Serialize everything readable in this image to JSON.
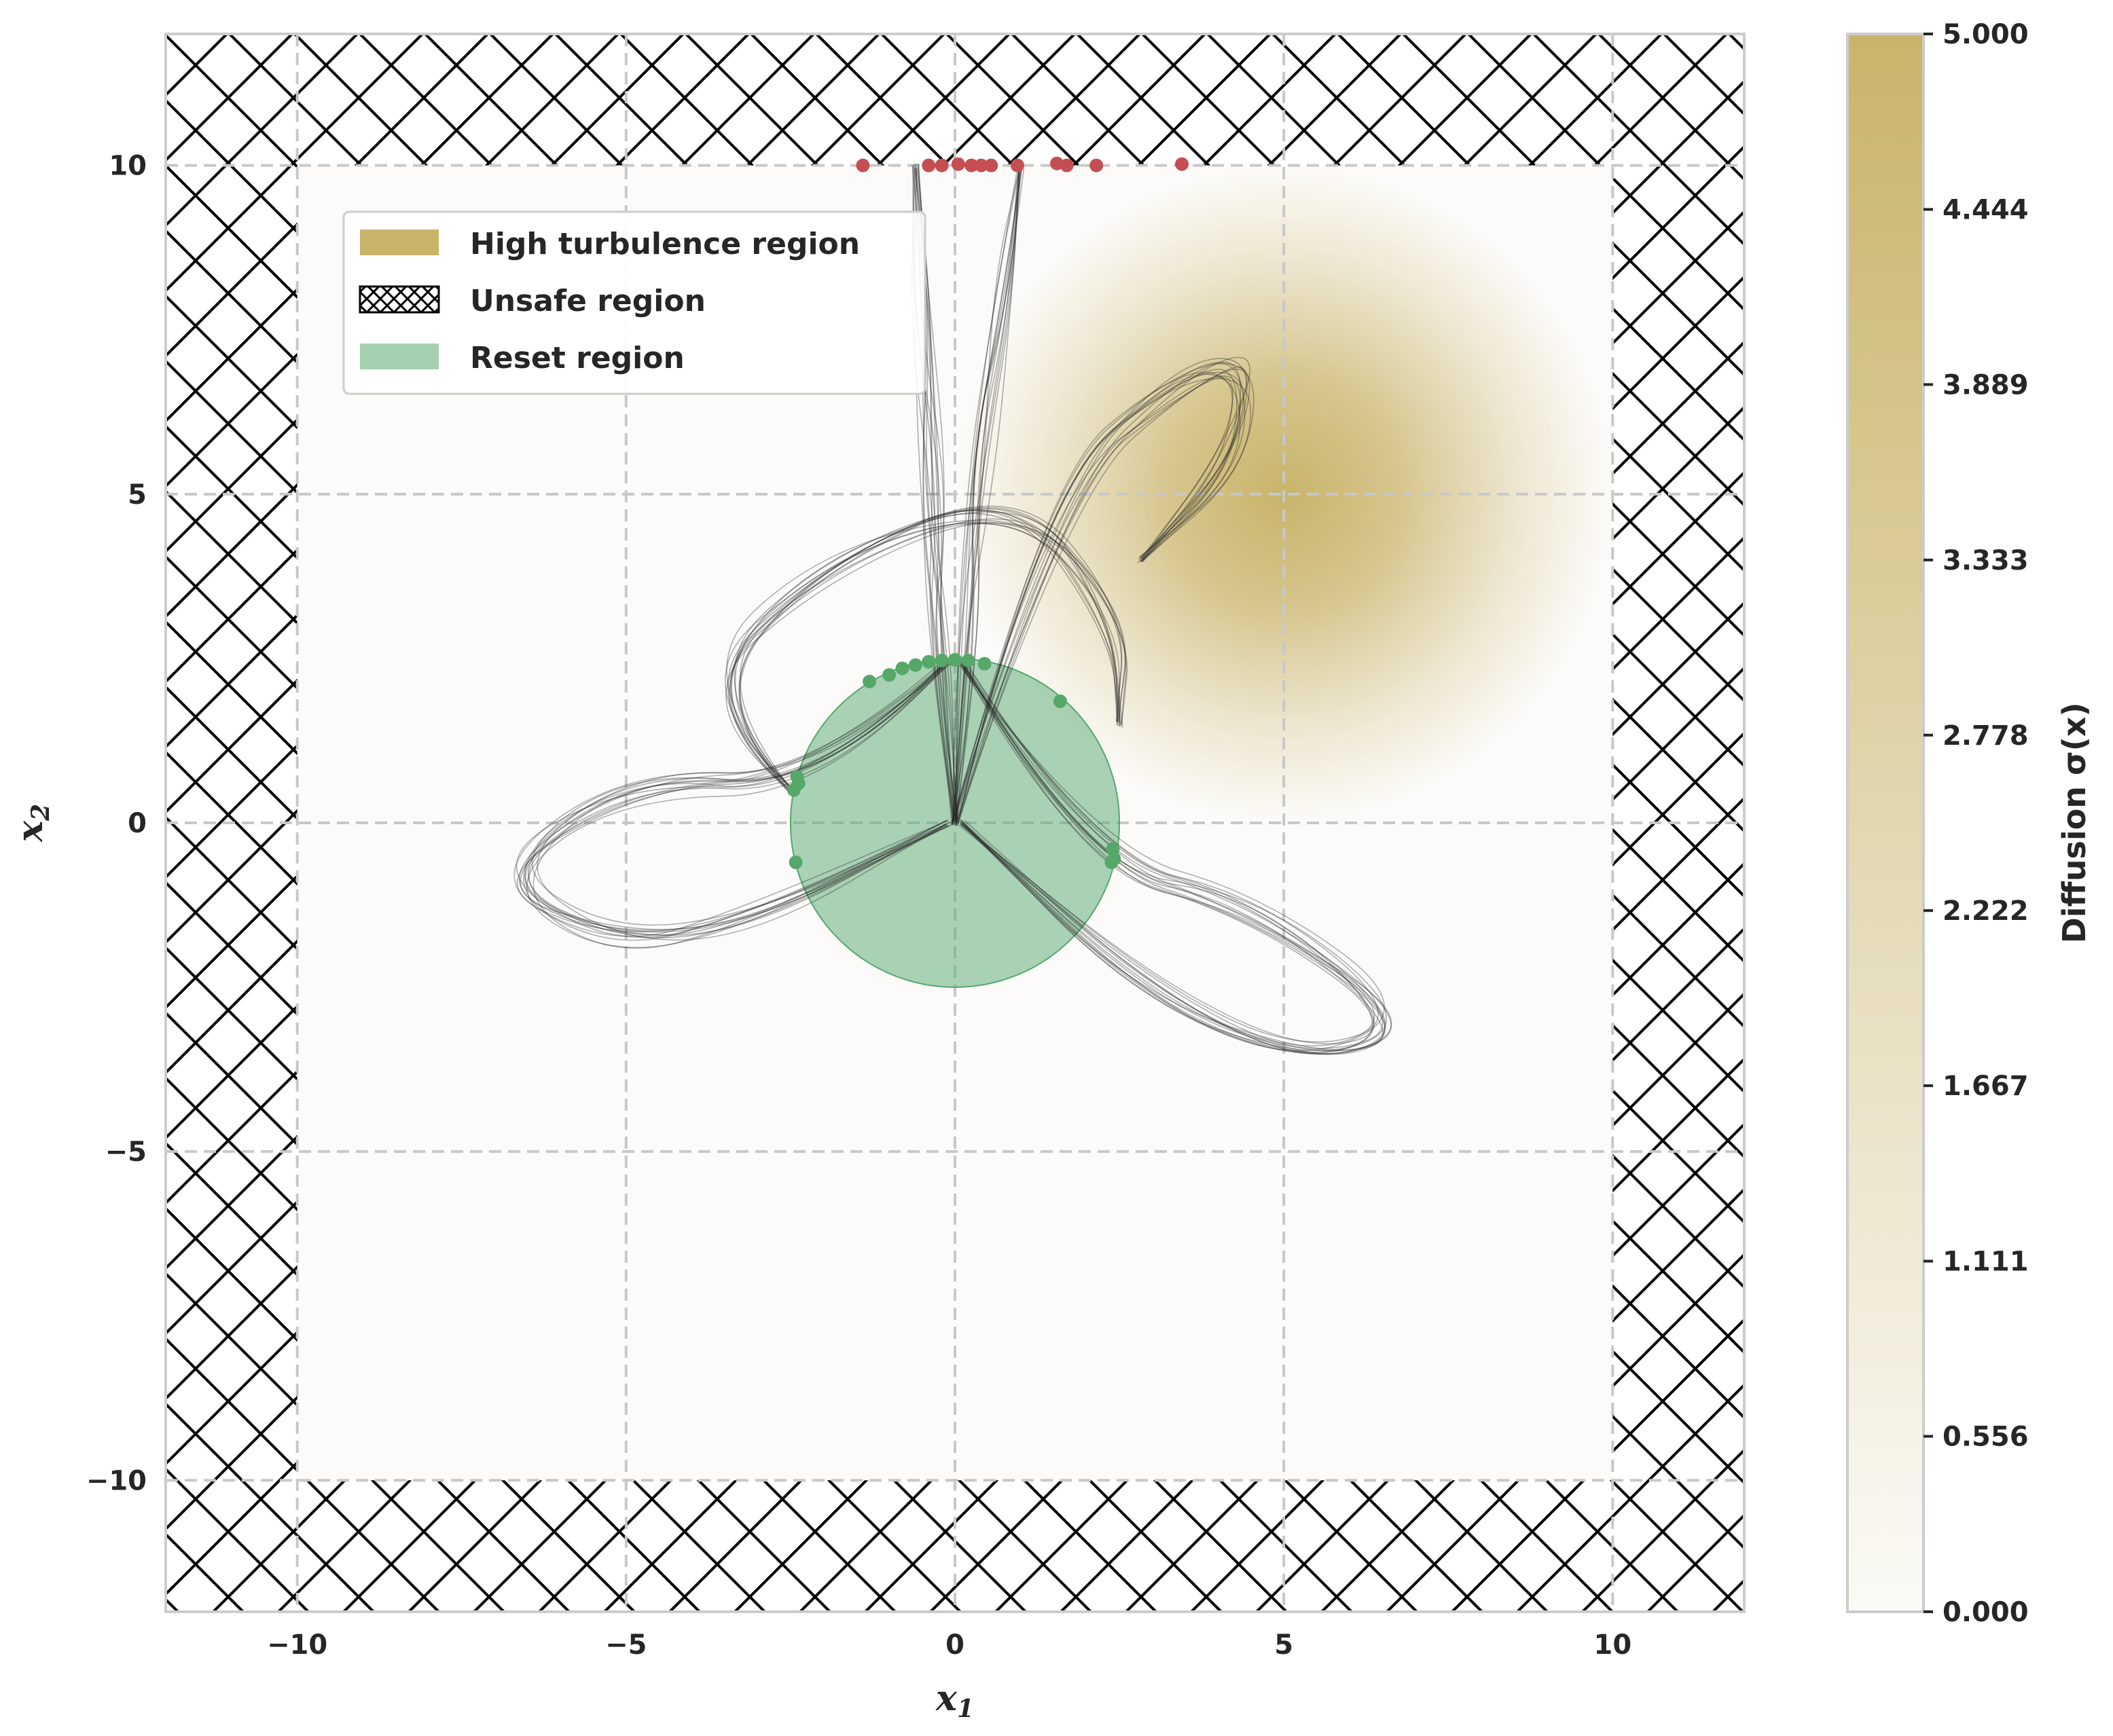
{
  "chart_data": {
    "type": "scatter",
    "xlabel": "x",
    "xlabel_sub": "1",
    "ylabel": "x",
    "ylabel_sub": "2",
    "xlim": [
      -12,
      12
    ],
    "ylim": [
      -12,
      12
    ],
    "xticks": [
      -10,
      -5,
      0,
      5,
      10
    ],
    "yticks": [
      -10,
      -5,
      0,
      5,
      10
    ],
    "xtick_labels": [
      "−10",
      "−5",
      "0",
      "5",
      "10"
    ],
    "ytick_labels": [
      "−10",
      "−5",
      "0",
      "5",
      "10"
    ],
    "grid": true,
    "legend_position": "upper-left",
    "legend": [
      {
        "label": "High turbulence region",
        "kind": "patch",
        "color": "#c9b46a"
      },
      {
        "label": "Unsafe region",
        "kind": "hatch",
        "color": "#000000"
      },
      {
        "label": "Reset region",
        "kind": "patch",
        "color": "#a5d1b0"
      }
    ],
    "safe_box": {
      "xmin": -10,
      "xmax": 10,
      "ymin": -10,
      "ymax": 10
    },
    "turbulence": {
      "center": [
        5,
        5
      ],
      "sigma_max": 5.0,
      "radius": 5
    },
    "reset_region": {
      "center": [
        0,
        0
      ],
      "radius": 2.5
    },
    "unsafe_exit_points": [
      {
        "x": -1.4,
        "y": 10.0
      },
      {
        "x": -0.4,
        "y": 10.0
      },
      {
        "x": -0.2,
        "y": 10.0
      },
      {
        "x": 0.05,
        "y": 10.02
      },
      {
        "x": 0.25,
        "y": 10.0
      },
      {
        "x": 0.4,
        "y": 10.0
      },
      {
        "x": 0.55,
        "y": 10.0
      },
      {
        "x": 0.95,
        "y": 10.0
      },
      {
        "x": 1.55,
        "y": 10.03
      },
      {
        "x": 1.7,
        "y": 10.0
      },
      {
        "x": 2.15,
        "y": 10.0
      },
      {
        "x": 3.45,
        "y": 10.02
      }
    ],
    "reset_entry_points": [
      {
        "x": -1.3,
        "y": 2.15
      },
      {
        "x": -1.0,
        "y": 2.25
      },
      {
        "x": -0.8,
        "y": 2.35
      },
      {
        "x": -0.6,
        "y": 2.4
      },
      {
        "x": -0.4,
        "y": 2.45
      },
      {
        "x": -0.2,
        "y": 2.47
      },
      {
        "x": 0.0,
        "y": 2.48
      },
      {
        "x": 0.2,
        "y": 2.47
      },
      {
        "x": 0.45,
        "y": 2.42
      },
      {
        "x": 1.6,
        "y": 1.85
      },
      {
        "x": -2.4,
        "y": 0.7
      },
      {
        "x": -2.45,
        "y": 0.5
      },
      {
        "x": -2.38,
        "y": 0.6
      },
      {
        "x": -2.42,
        "y": -0.6
      },
      {
        "x": 2.4,
        "y": -0.4
      },
      {
        "x": 2.42,
        "y": -0.55
      },
      {
        "x": 2.38,
        "y": -0.6
      }
    ],
    "trajectory_series": [
      {
        "points": [
          [
            -0.1,
            2.45
          ],
          [
            -2.0,
            0.6
          ],
          [
            -5.0,
            0.6
          ],
          [
            -7.0,
            -0.8
          ],
          [
            -5.2,
            -1.9
          ],
          [
            -3.0,
            -1.5
          ],
          [
            -0.1,
            0
          ]
        ]
      },
      {
        "points": [
          [
            0.1,
            2.45
          ],
          [
            2.0,
            -0.6
          ],
          [
            4.5,
            -1.2
          ],
          [
            7.0,
            -3.0
          ],
          [
            5.5,
            -3.6
          ],
          [
            3.0,
            -2.6
          ],
          [
            0.1,
            0
          ]
        ]
      },
      {
        "points": [
          [
            0,
            0
          ],
          [
            -0.2,
            2.5
          ],
          [
            -0.3,
            5.0
          ],
          [
            -0.5,
            7.5
          ],
          [
            -0.6,
            10.0
          ]
        ]
      },
      {
        "points": [
          [
            0,
            0
          ],
          [
            0.2,
            2.5
          ],
          [
            0.4,
            5.5
          ],
          [
            0.7,
            8.0
          ],
          [
            1.0,
            10.0
          ]
        ]
      },
      {
        "points": [
          [
            -2.5,
            0.5
          ],
          [
            -4.0,
            2.0
          ],
          [
            -2.0,
            4.0
          ],
          [
            1.0,
            5.0
          ],
          [
            2.5,
            3.0
          ],
          [
            2.5,
            1.5
          ]
        ]
      },
      {
        "points": [
          [
            0,
            0
          ],
          [
            1.5,
            5.0
          ],
          [
            3.5,
            6.8
          ],
          [
            4.5,
            7.0
          ],
          [
            4.2,
            5.5
          ],
          [
            2.8,
            4.0
          ]
        ]
      }
    ],
    "colorbar": {
      "label": "Diffusion σ(x)",
      "min": 0.0,
      "max": 5.0,
      "ticks": [
        "0.000",
        "0.556",
        "1.111",
        "1.667",
        "2.222",
        "2.778",
        "3.333",
        "3.889",
        "4.444",
        "5.000"
      ],
      "colors": [
        "#fbfaf6",
        "#c9b46a"
      ]
    }
  }
}
